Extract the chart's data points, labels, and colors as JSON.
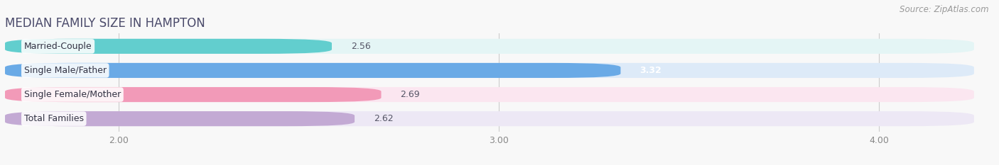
{
  "title": "MEDIAN FAMILY SIZE IN HAMPTON",
  "source": "Source: ZipAtlas.com",
  "categories": [
    "Married-Couple",
    "Single Male/Father",
    "Single Female/Mother",
    "Total Families"
  ],
  "values": [
    2.56,
    3.32,
    2.69,
    2.62
  ],
  "bar_colors": [
    "#62cece",
    "#6aaae6",
    "#f29ab8",
    "#c3aad4"
  ],
  "bar_bg_colors": [
    "#e4f5f5",
    "#ddeaf8",
    "#fbe6f0",
    "#ede8f5"
  ],
  "value_inside": [
    false,
    true,
    false,
    false
  ],
  "xlim_left": 1.7,
  "xlim_right": 4.25,
  "xticks": [
    2.0,
    3.0,
    4.0
  ],
  "xtick_labels": [
    "2.00",
    "3.00",
    "4.00"
  ],
  "bar_height": 0.62,
  "figsize": [
    14.06,
    2.33
  ],
  "dpi": 100,
  "title_fontsize": 12,
  "label_fontsize": 9,
  "value_fontsize": 9,
  "source_fontsize": 8.5,
  "bg_color": "#f8f8f8",
  "title_color": "#4a4a6a"
}
